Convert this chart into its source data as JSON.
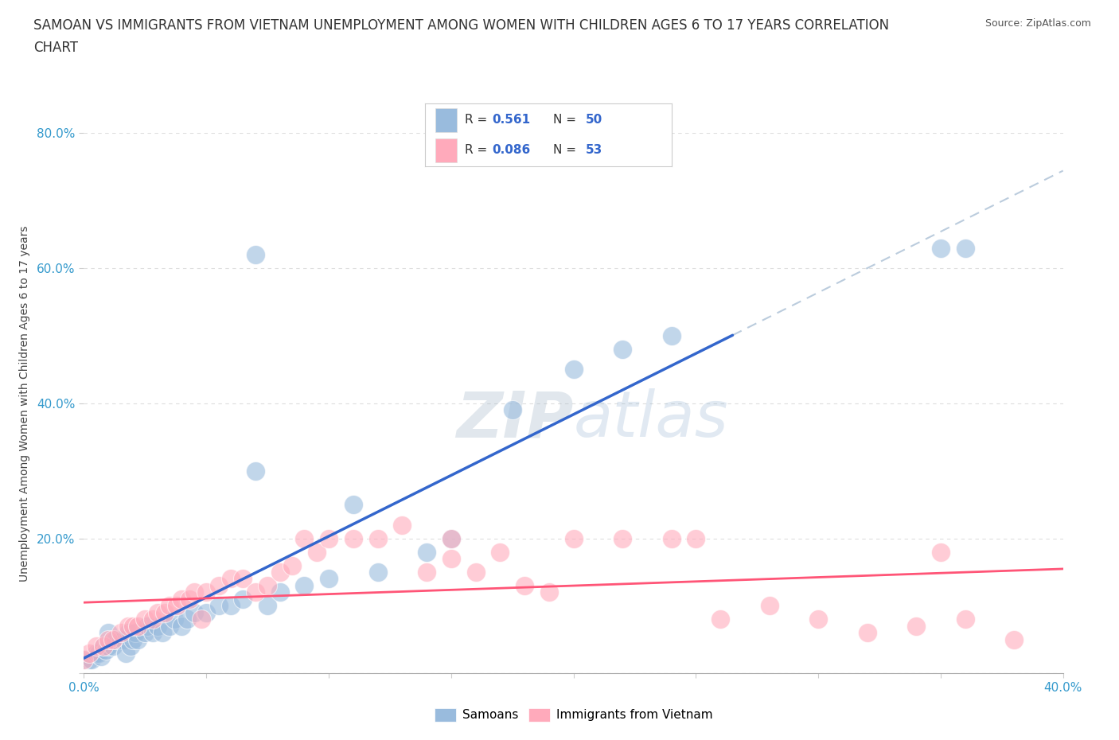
{
  "title_line1": "SAMOAN VS IMMIGRANTS FROM VIETNAM UNEMPLOYMENT AMONG WOMEN WITH CHILDREN AGES 6 TO 17 YEARS CORRELATION",
  "title_line2": "CHART",
  "source": "Source: ZipAtlas.com",
  "ylabel": "Unemployment Among Women with Children Ages 6 to 17 years",
  "xlim": [
    0.0,
    0.4
  ],
  "ylim": [
    0.0,
    0.8
  ],
  "xticks": [
    0.0,
    0.05,
    0.1,
    0.15,
    0.2,
    0.25,
    0.3,
    0.35,
    0.4
  ],
  "yticks": [
    0.0,
    0.2,
    0.4,
    0.6,
    0.8
  ],
  "xticklabels": [
    "0.0%",
    "",
    "",
    "",
    "",
    "",
    "",
    "",
    "40.0%"
  ],
  "yticklabels": [
    "",
    "20.0%",
    "40.0%",
    "60.0%",
    "80.0%"
  ],
  "watermark": "ZIPatlas",
  "samoans_color": "#99BBDD",
  "vietnam_color": "#FFAABB",
  "samoans_line_color": "#3366CC",
  "vietnam_line_color": "#FF5577",
  "dashed_line_color": "#BBCCDD",
  "legend_color1": "#99BBDD",
  "legend_color2": "#FFAABB",
  "r1_val": "0.561",
  "r2_val": "0.086",
  "n1_val": "50",
  "n2_val": "53",
  "rv_color": "#3366CC",
  "background_color": "#FFFFFF",
  "grid_color": "#DDDDDD",
  "title_fontsize": 12,
  "axis_label_fontsize": 10,
  "tick_fontsize": 11,
  "tick_color": "#3399CC",
  "samoans_label": "Samoans",
  "vietnam_label": "Immigrants from Vietnam",
  "samoans_x": [
    0.0,
    0.002,
    0.003,
    0.005,
    0.006,
    0.007,
    0.008,
    0.009,
    0.01,
    0.01,
    0.012,
    0.013,
    0.015,
    0.016,
    0.017,
    0.018,
    0.019,
    0.02,
    0.021,
    0.022,
    0.025,
    0.026,
    0.028,
    0.03,
    0.032,
    0.035,
    0.037,
    0.04,
    0.042,
    0.045,
    0.05,
    0.055,
    0.06,
    0.065,
    0.07,
    0.075,
    0.08,
    0.09,
    0.1,
    0.11,
    0.12,
    0.14,
    0.15,
    0.175,
    0.2,
    0.22,
    0.24,
    0.07,
    0.35,
    0.36
  ],
  "samoans_y": [
    0.02,
    0.02,
    0.02,
    0.03,
    0.03,
    0.025,
    0.04,
    0.035,
    0.04,
    0.06,
    0.04,
    0.05,
    0.05,
    0.05,
    0.03,
    0.06,
    0.04,
    0.05,
    0.06,
    0.05,
    0.06,
    0.07,
    0.06,
    0.07,
    0.06,
    0.07,
    0.08,
    0.07,
    0.08,
    0.09,
    0.09,
    0.1,
    0.1,
    0.11,
    0.3,
    0.1,
    0.12,
    0.13,
    0.14,
    0.25,
    0.15,
    0.18,
    0.2,
    0.39,
    0.45,
    0.48,
    0.5,
    0.62,
    0.63,
    0.63
  ],
  "vietnam_x": [
    0.0,
    0.002,
    0.005,
    0.008,
    0.01,
    0.012,
    0.015,
    0.018,
    0.02,
    0.022,
    0.025,
    0.028,
    0.03,
    0.033,
    0.035,
    0.038,
    0.04,
    0.043,
    0.045,
    0.048,
    0.05,
    0.055,
    0.06,
    0.065,
    0.07,
    0.075,
    0.08,
    0.085,
    0.09,
    0.095,
    0.1,
    0.11,
    0.12,
    0.13,
    0.14,
    0.15,
    0.16,
    0.17,
    0.18,
    0.19,
    0.2,
    0.22,
    0.24,
    0.26,
    0.28,
    0.3,
    0.32,
    0.34,
    0.36,
    0.38,
    0.15,
    0.25,
    0.35
  ],
  "vietnam_y": [
    0.02,
    0.03,
    0.04,
    0.04,
    0.05,
    0.05,
    0.06,
    0.07,
    0.07,
    0.07,
    0.08,
    0.08,
    0.09,
    0.09,
    0.1,
    0.1,
    0.11,
    0.11,
    0.12,
    0.08,
    0.12,
    0.13,
    0.14,
    0.14,
    0.12,
    0.13,
    0.15,
    0.16,
    0.2,
    0.18,
    0.2,
    0.2,
    0.2,
    0.22,
    0.15,
    0.17,
    0.15,
    0.18,
    0.13,
    0.12,
    0.2,
    0.2,
    0.2,
    0.08,
    0.1,
    0.08,
    0.06,
    0.07,
    0.08,
    0.05,
    0.2,
    0.2,
    0.18
  ]
}
